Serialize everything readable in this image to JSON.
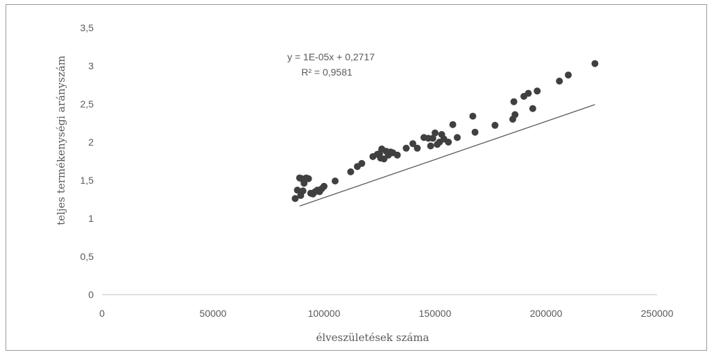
{
  "chart_data": {
    "type": "scatter",
    "title": "",
    "xlabel": "élveszületések száma",
    "ylabel": "teljes termékenységi arányszám",
    "xlim": [
      0,
      250000
    ],
    "ylim": [
      0,
      3.5
    ],
    "x_ticks": [
      "0",
      "50000",
      "100000",
      "150000",
      "200000",
      "250000"
    ],
    "y_ticks": [
      "0",
      "0,5",
      "1",
      "1,5",
      "2",
      "2,5",
      "3",
      "3,5"
    ],
    "grid": "none",
    "legend": "none",
    "trendline": {
      "type": "linear",
      "equation": "y = 1E-05x + 0,2717",
      "r_squared": "R² = 0,9581",
      "x_range": [
        89000,
        222000
      ]
    },
    "colors": {
      "points": "#404040",
      "trendline": "#595959",
      "text": "#595959"
    },
    "points": [
      [
        87000,
        1.26
      ],
      [
        88000,
        1.37
      ],
      [
        89000,
        1.53
      ],
      [
        89500,
        1.3
      ],
      [
        90000,
        1.52
      ],
      [
        90500,
        1.36
      ],
      [
        91000,
        1.46
      ],
      [
        92000,
        1.53
      ],
      [
        93000,
        1.52
      ],
      [
        94000,
        1.33
      ],
      [
        95000,
        1.32
      ],
      [
        96000,
        1.35
      ],
      [
        97000,
        1.37
      ],
      [
        98000,
        1.35
      ],
      [
        99000,
        1.39
      ],
      [
        100000,
        1.42
      ],
      [
        105000,
        1.49
      ],
      [
        112000,
        1.61
      ],
      [
        115000,
        1.68
      ],
      [
        117000,
        1.72
      ],
      [
        122000,
        1.81
      ],
      [
        124000,
        1.84
      ],
      [
        125000,
        1.85
      ],
      [
        125500,
        1.79
      ],
      [
        126000,
        1.91
      ],
      [
        127000,
        1.78
      ],
      [
        128000,
        1.88
      ],
      [
        129000,
        1.83
      ],
      [
        130000,
        1.87
      ],
      [
        131000,
        1.86
      ],
      [
        133000,
        1.83
      ],
      [
        137000,
        1.92
      ],
      [
        140000,
        1.98
      ],
      [
        142000,
        1.92
      ],
      [
        145000,
        2.06
      ],
      [
        147000,
        2.05
      ],
      [
        148000,
        1.95
      ],
      [
        149000,
        2.05
      ],
      [
        150000,
        2.12
      ],
      [
        151000,
        1.97
      ],
      [
        152000,
        2.0
      ],
      [
        153000,
        2.1
      ],
      [
        154000,
        2.04
      ],
      [
        156000,
        2.0
      ],
      [
        158000,
        2.23
      ],
      [
        160000,
        2.06
      ],
      [
        167000,
        2.34
      ],
      [
        168000,
        2.13
      ],
      [
        177000,
        2.22
      ],
      [
        185000,
        2.3
      ],
      [
        185500,
        2.53
      ],
      [
        186000,
        2.36
      ],
      [
        190000,
        2.6
      ],
      [
        192000,
        2.64
      ],
      [
        194000,
        2.44
      ],
      [
        196000,
        2.67
      ],
      [
        206000,
        2.8
      ],
      [
        210000,
        2.88
      ],
      [
        222000,
        3.03
      ]
    ]
  }
}
